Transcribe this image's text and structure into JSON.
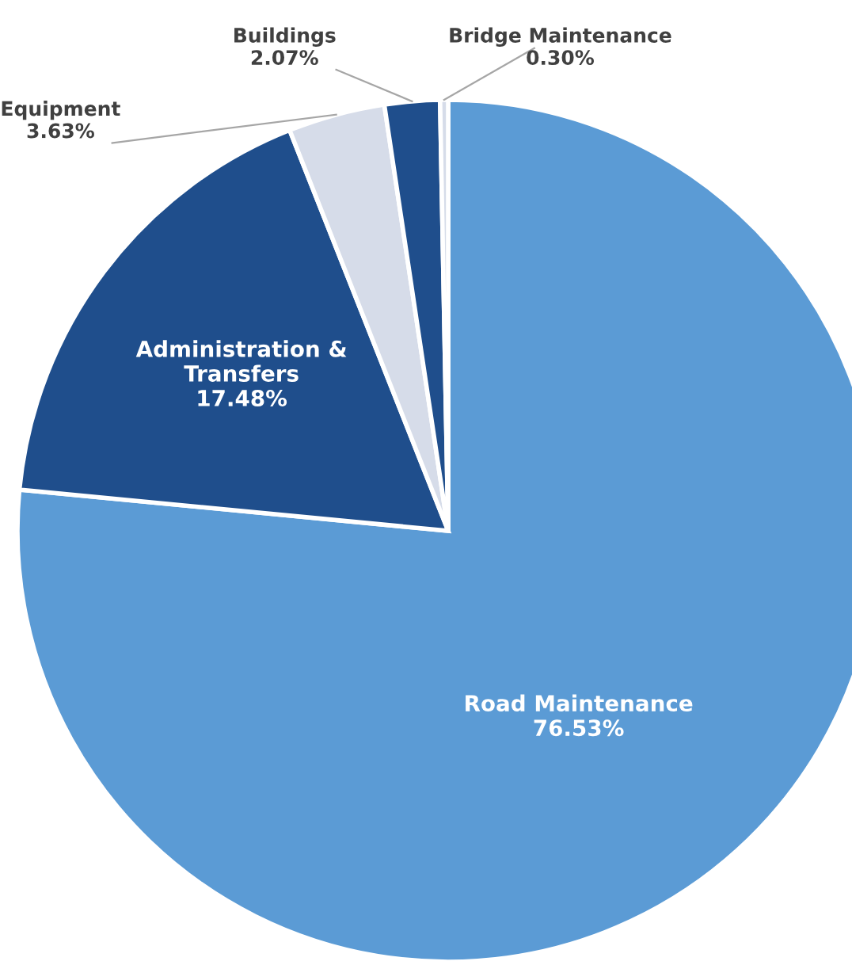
{
  "chart_data": {
    "type": "pie",
    "categories": [
      "Road Maintenance",
      "Administration & Transfers",
      "Equipment",
      "Buildings",
      "Bridge Maintenance"
    ],
    "values": [
      76.53,
      17.48,
      3.63,
      2.07,
      0.3
    ],
    "value_labels": [
      "76.53%",
      "17.48%",
      "3.63%",
      "2.07%",
      "0.30%"
    ],
    "colors": [
      "#5b9bd5",
      "#1f4e8c",
      "#d6dce9",
      "#1f4e8c",
      "#d6dce9"
    ],
    "legend": false
  }
}
